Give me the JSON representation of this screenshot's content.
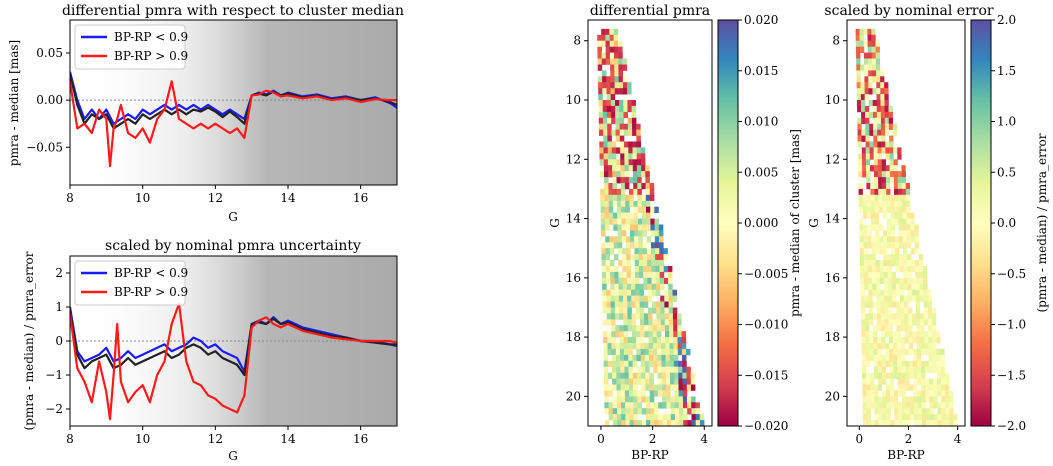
{
  "colors": {
    "blue_series": "#1a1aff",
    "red_series": "#ff1a1a",
    "black_series": "#222222",
    "scatter": "#9a9a9a",
    "zero_line": "#888888",
    "spectral": [
      "#9e0142",
      "#d53e4f",
      "#f46d43",
      "#fdae61",
      "#fee08b",
      "#ffffbf",
      "#e6f598",
      "#abdda4",
      "#66c2a5",
      "#3288bd",
      "#5e4fa2"
    ]
  },
  "chart_data": [
    {
      "type": "line",
      "title": "differential pmra with respect to cluster median",
      "xlabel": "G",
      "ylabel": "pmra - median [mas]",
      "xlim": [
        8,
        17
      ],
      "ylim": [
        -0.09,
        0.085
      ],
      "xticks": [
        8,
        10,
        12,
        14,
        16
      ],
      "yticks": [
        -0.05,
        0.0,
        0.05
      ],
      "ytick_labels": [
        "−0.05",
        "0.00",
        "0.05"
      ],
      "legend_position": "top-left",
      "legend": [
        "BP-RP < 0.9",
        "BP-RP > 0.9"
      ],
      "grid": false,
      "series": [
        {
          "name": "BP-RP < 0.9",
          "color": "blue",
          "x": [
            8.0,
            8.2,
            8.4,
            8.6,
            8.8,
            9.0,
            9.2,
            9.4,
            9.6,
            9.8,
            10.0,
            10.2,
            10.4,
            10.6,
            10.8,
            11.0,
            11.2,
            11.4,
            11.6,
            11.8,
            12.0,
            12.2,
            12.4,
            12.6,
            12.8,
            13.0,
            13.2,
            13.4,
            13.6,
            13.8,
            14.0,
            14.4,
            14.8,
            15.2,
            15.6,
            16.0,
            16.4,
            16.8,
            17.0
          ],
          "y": [
            0.03,
            0.0,
            -0.02,
            -0.01,
            -0.02,
            -0.01,
            -0.025,
            -0.02,
            -0.015,
            -0.02,
            -0.01,
            -0.015,
            -0.01,
            -0.005,
            -0.01,
            -0.005,
            -0.01,
            -0.005,
            -0.01,
            -0.005,
            -0.01,
            -0.015,
            -0.01,
            -0.015,
            -0.02,
            0.005,
            0.008,
            0.006,
            0.01,
            0.005,
            0.008,
            0.004,
            0.006,
            0.002,
            0.004,
            0.0,
            0.003,
            -0.003,
            -0.008
          ]
        },
        {
          "name": "",
          "color": "black",
          "x": [
            8.0,
            8.2,
            8.4,
            8.6,
            8.8,
            9.0,
            9.2,
            9.4,
            9.6,
            9.8,
            10.0,
            10.2,
            10.4,
            10.6,
            10.8,
            11.0,
            11.2,
            11.4,
            11.6,
            11.8,
            12.0,
            12.2,
            12.4,
            12.6,
            12.8,
            13.0,
            13.2,
            13.4,
            13.6,
            13.8,
            14.0,
            14.4,
            14.8,
            15.2,
            15.6,
            16.0,
            16.4,
            16.8,
            17.0
          ],
          "y": [
            0.028,
            -0.005,
            -0.025,
            -0.015,
            -0.02,
            -0.015,
            -0.03,
            -0.025,
            -0.02,
            -0.025,
            -0.015,
            -0.02,
            -0.015,
            -0.01,
            -0.015,
            -0.01,
            -0.015,
            -0.01,
            -0.012,
            -0.008,
            -0.012,
            -0.018,
            -0.012,
            -0.018,
            -0.025,
            0.005,
            0.007,
            0.005,
            0.009,
            0.005,
            0.007,
            0.003,
            0.005,
            0.001,
            0.003,
            0.0,
            0.002,
            -0.002,
            -0.005
          ]
        },
        {
          "name": "BP-RP > 0.9",
          "color": "red",
          "x": [
            8.0,
            8.2,
            8.4,
            8.6,
            8.8,
            9.0,
            9.1,
            9.2,
            9.3,
            9.4,
            9.6,
            9.8,
            10.0,
            10.2,
            10.4,
            10.6,
            10.8,
            11.0,
            11.2,
            11.4,
            11.6,
            11.8,
            12.0,
            12.2,
            12.4,
            12.6,
            12.8,
            13.0,
            13.2,
            13.4,
            13.6,
            13.8,
            14.0,
            14.4,
            14.8,
            15.2,
            15.6,
            16.0,
            16.4,
            16.8,
            17.0
          ],
          "y": [
            0.02,
            -0.03,
            -0.025,
            -0.035,
            -0.01,
            -0.02,
            -0.07,
            -0.03,
            -0.02,
            -0.005,
            -0.035,
            -0.04,
            -0.03,
            -0.045,
            -0.02,
            -0.01,
            0.02,
            -0.02,
            -0.025,
            -0.03,
            -0.025,
            -0.03,
            -0.025,
            -0.03,
            -0.035,
            -0.03,
            -0.04,
            0.005,
            0.006,
            0.01,
            0.008,
            0.004,
            0.005,
            0.002,
            0.004,
            0.0,
            0.002,
            -0.002,
            0.001,
            0.0,
            0.0
          ]
        }
      ]
    },
    {
      "type": "line",
      "title": "scaled by nominal pmra uncertainty",
      "xlabel": "G",
      "ylabel": "(pmra - median) / pmra_error",
      "xlim": [
        8,
        17
      ],
      "ylim": [
        -2.5,
        2.5
      ],
      "xticks": [
        8,
        10,
        12,
        14,
        16
      ],
      "yticks": [
        -2,
        -1,
        0,
        1,
        2
      ],
      "ytick_labels": [
        "−2",
        "−1",
        "0",
        "1",
        "2"
      ],
      "legend_position": "top-left",
      "legend": [
        "BP-RP < 0.9",
        "BP-RP > 0.9"
      ],
      "grid": false,
      "series": [
        {
          "name": "BP-RP < 0.9",
          "color": "blue",
          "x": [
            8.0,
            8.2,
            8.4,
            8.6,
            8.8,
            9.0,
            9.2,
            9.4,
            9.6,
            9.8,
            10.0,
            10.2,
            10.4,
            10.6,
            10.8,
            11.0,
            11.2,
            11.4,
            11.6,
            11.8,
            12.0,
            12.2,
            12.4,
            12.6,
            12.8,
            13.0,
            13.2,
            13.4,
            13.6,
            13.8,
            14.0,
            14.4,
            14.8,
            15.2,
            15.6,
            16.0,
            16.4,
            16.8,
            17.0
          ],
          "y": [
            1.0,
            -0.3,
            -0.6,
            -0.5,
            -0.4,
            -0.2,
            -0.6,
            -0.5,
            -0.3,
            -0.5,
            -0.4,
            -0.3,
            -0.2,
            -0.1,
            -0.3,
            -0.2,
            -0.1,
            0.1,
            0.0,
            -0.2,
            -0.1,
            -0.3,
            -0.4,
            -0.5,
            -0.9,
            0.5,
            0.6,
            0.5,
            0.7,
            0.5,
            0.6,
            0.4,
            0.3,
            0.2,
            0.1,
            0.0,
            0.0,
            -0.1,
            -0.15
          ]
        },
        {
          "name": "",
          "color": "black",
          "x": [
            8.0,
            8.2,
            8.4,
            8.6,
            8.8,
            9.0,
            9.2,
            9.4,
            9.6,
            9.8,
            10.0,
            10.2,
            10.4,
            10.6,
            10.8,
            11.0,
            11.2,
            11.4,
            11.6,
            11.8,
            12.0,
            12.2,
            12.4,
            12.6,
            12.8,
            13.0,
            13.2,
            13.4,
            13.6,
            13.8,
            14.0,
            14.4,
            14.8,
            15.2,
            15.6,
            16.0,
            16.4,
            16.8,
            17.0
          ],
          "y": [
            0.9,
            -0.4,
            -0.8,
            -0.6,
            -0.5,
            -0.4,
            -0.8,
            -0.7,
            -0.5,
            -0.7,
            -0.6,
            -0.5,
            -0.4,
            -0.3,
            -0.5,
            -0.4,
            -0.2,
            -0.1,
            -0.2,
            -0.4,
            -0.3,
            -0.5,
            -0.6,
            -0.7,
            -1.0,
            0.5,
            0.55,
            0.5,
            0.65,
            0.5,
            0.55,
            0.35,
            0.25,
            0.15,
            0.1,
            0.0,
            -0.05,
            -0.1,
            -0.1
          ]
        },
        {
          "name": "BP-RP > 0.9",
          "color": "red",
          "x": [
            8.0,
            8.2,
            8.4,
            8.6,
            8.8,
            9.0,
            9.1,
            9.2,
            9.3,
            9.4,
            9.6,
            9.8,
            10.0,
            10.2,
            10.4,
            10.6,
            10.8,
            11.0,
            11.2,
            11.4,
            11.6,
            11.8,
            12.0,
            12.2,
            12.4,
            12.6,
            12.8,
            13.0,
            13.2,
            13.4,
            13.6,
            13.8,
            14.0,
            14.4,
            14.8,
            15.2,
            15.6,
            16.0,
            16.4,
            16.8,
            17.0
          ],
          "y": [
            0.8,
            -0.8,
            -1.2,
            -1.8,
            -0.6,
            -1.5,
            -2.3,
            -1.0,
            0.5,
            -1.2,
            -1.8,
            -1.5,
            -1.3,
            -1.8,
            -1.0,
            -0.6,
            0.5,
            1.1,
            -0.6,
            -1.2,
            -1.3,
            -1.6,
            -1.7,
            -1.9,
            -2.0,
            -2.1,
            -1.6,
            0.4,
            0.6,
            0.7,
            0.5,
            0.4,
            0.5,
            0.3,
            0.2,
            0.1,
            0.05,
            0.0,
            0.0,
            0.0,
            -0.05
          ]
        }
      ]
    },
    {
      "type": "heatmap",
      "title": "differential pmra",
      "xlabel": "BP-RP",
      "ylabel": "G",
      "xlim": [
        -0.5,
        4.3
      ],
      "ylim": [
        21,
        7.3
      ],
      "xticks": [
        0,
        2,
        4
      ],
      "yticks": [
        8,
        10,
        12,
        14,
        16,
        18,
        20
      ],
      "colormap": "Spectral",
      "colorbar_label": "pmra - median of cluster [mas]",
      "colorbar_range": [
        -0.02,
        0.02
      ],
      "colorbar_ticks": [
        -0.02,
        -0.015,
        -0.01,
        -0.005,
        0.0,
        0.005,
        0.01,
        0.015,
        0.02
      ],
      "colorbar_tick_labels": [
        "−0.020",
        "−0.015",
        "−0.010",
        "−0.005",
        "0.000",
        "0.005",
        "0.010",
        "0.015",
        "0.020"
      ]
    },
    {
      "type": "heatmap",
      "title": "scaled by nominal error",
      "xlabel": "BP-RP",
      "ylabel": "G",
      "xlim": [
        -0.5,
        4.3
      ],
      "ylim": [
        21,
        7.3
      ],
      "xticks": [
        0,
        2,
        4
      ],
      "yticks": [
        8,
        10,
        12,
        14,
        16,
        18,
        20
      ],
      "colormap": "Spectral",
      "colorbar_label": "(pmra - median) / pmra_error",
      "colorbar_range": [
        -2.0,
        2.0
      ],
      "colorbar_ticks": [
        -2.0,
        -1.5,
        -1.0,
        -0.5,
        0.0,
        0.5,
        1.0,
        1.5,
        2.0
      ],
      "colorbar_tick_labels": [
        "−2.0",
        "−1.5",
        "−1.0",
        "−0.5",
        "0.0",
        "0.5",
        "1.0",
        "1.5",
        "2.0"
      ]
    }
  ]
}
